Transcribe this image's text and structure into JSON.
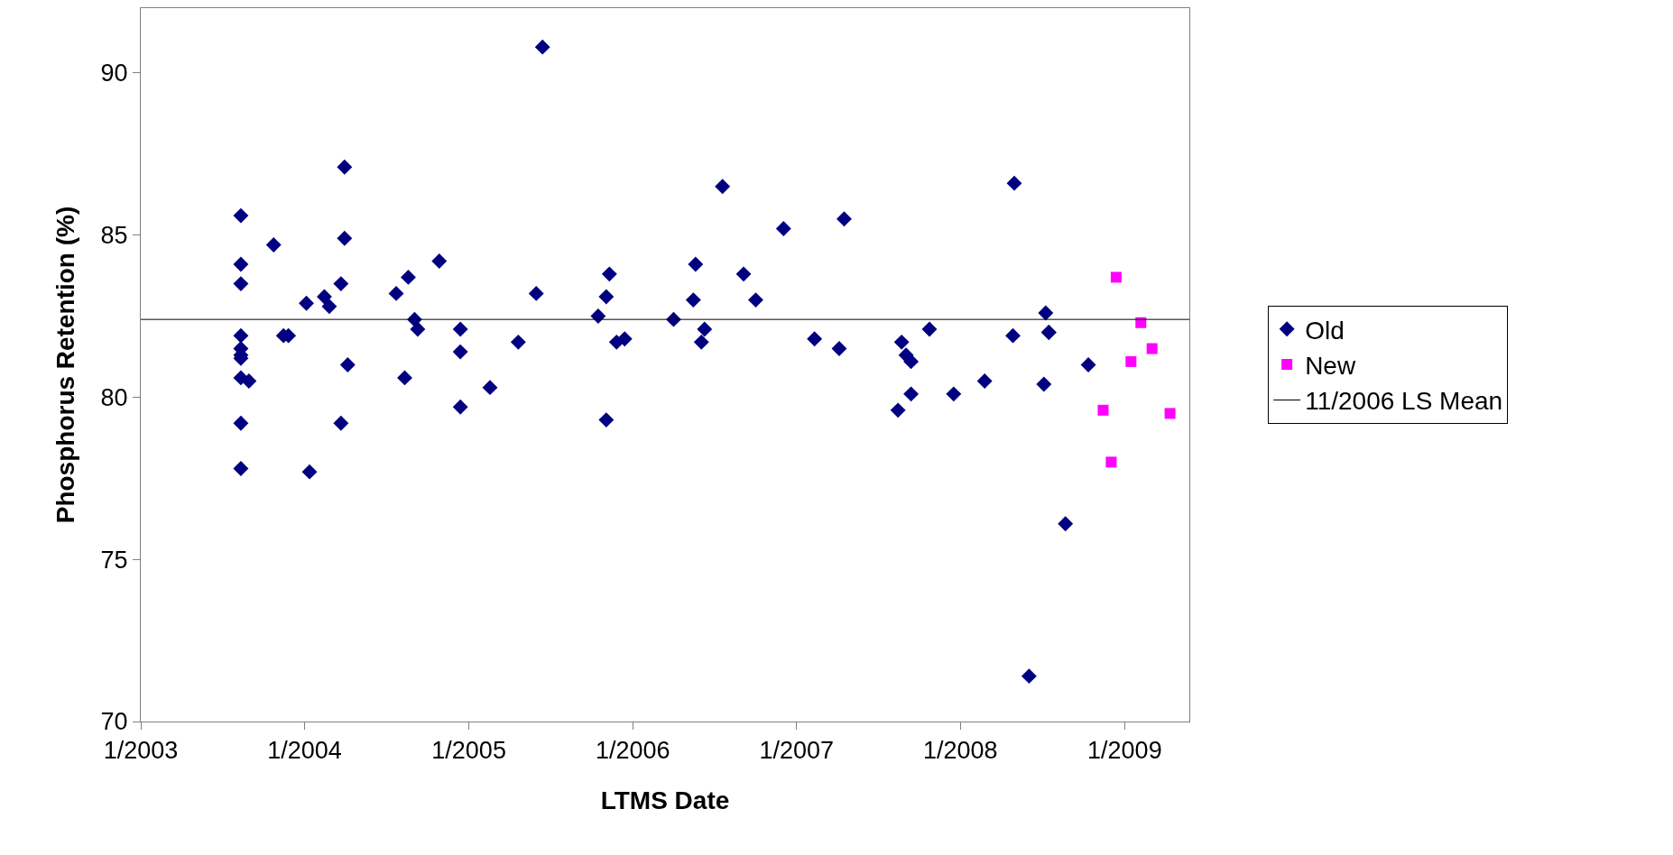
{
  "chart_data": {
    "type": "scatter",
    "xlabel": "LTMS Date",
    "ylabel": "Phosphorus Retention (%)",
    "xlim": [
      "2003-01-01",
      "2009-05-25"
    ],
    "xticks": [
      {
        "value": "2003-01-01",
        "label": "1/2003"
      },
      {
        "value": "2004-01-01",
        "label": "1/2004"
      },
      {
        "value": "2005-01-01",
        "label": "1/2005"
      },
      {
        "value": "2006-01-01",
        "label": "1/2006"
      },
      {
        "value": "2007-01-01",
        "label": "1/2007"
      },
      {
        "value": "2008-01-01",
        "label": "1/2008"
      },
      {
        "value": "2009-01-01",
        "label": "1/2009"
      }
    ],
    "ylim": [
      70,
      92
    ],
    "yticks": [
      70,
      75,
      80,
      85,
      90
    ],
    "legend": "right",
    "series": [
      {
        "name": "Old",
        "color": "#000080",
        "marker": "diamond",
        "x": [
          "2003-08-12",
          "2003-08-12",
          "2003-08-12",
          "2003-08-12",
          "2003-08-12",
          "2003-08-12",
          "2003-08-12",
          "2003-08-12",
          "2003-08-12",
          "2003-08-12",
          "2003-08-30",
          "2003-10-24",
          "2003-11-15",
          "2003-11-26",
          "2004-01-05",
          "2004-01-12",
          "2004-02-14",
          "2004-02-25",
          "2004-03-22",
          "2004-03-22",
          "2004-03-30",
          "2004-03-30",
          "2004-04-06",
          "2004-07-23",
          "2004-08-11",
          "2004-08-19",
          "2004-09-02",
          "2004-09-09",
          "2004-10-27",
          "2004-12-13",
          "2004-12-13",
          "2004-12-13",
          "2005-02-17",
          "2005-04-21",
          "2005-05-31",
          "2005-06-14",
          "2005-10-16",
          "2005-11-03",
          "2005-11-03",
          "2005-11-10",
          "2005-11-26",
          "2005-12-14",
          "2006-04-02",
          "2006-05-16",
          "2006-05-21",
          "2006-06-03",
          "2006-06-10",
          "2006-07-20",
          "2006-09-05",
          "2006-10-02",
          "2006-12-03",
          "2007-02-10",
          "2007-04-06",
          "2007-04-17",
          "2007-08-15",
          "2007-08-23",
          "2007-09-02",
          "2007-09-13",
          "2007-09-13",
          "2007-10-24",
          "2007-12-17",
          "2008-02-24",
          "2008-04-30",
          "2008-04-27",
          "2008-06-02",
          "2008-07-05",
          "2008-07-09",
          "2008-07-16",
          "2008-07-16",
          "2008-08-22",
          "2008-10-12"
        ],
        "values": [
          85.6,
          84.1,
          83.5,
          81.9,
          81.5,
          81.3,
          81.2,
          80.6,
          79.2,
          77.8,
          80.5,
          84.7,
          81.9,
          81.9,
          82.9,
          77.7,
          83.1,
          82.8,
          83.5,
          79.2,
          87.1,
          84.9,
          81.0,
          83.2,
          80.6,
          83.7,
          82.4,
          82.1,
          84.2,
          82.1,
          81.4,
          79.7,
          80.3,
          81.7,
          83.2,
          90.8,
          82.5,
          83.1,
          79.3,
          83.8,
          81.7,
          81.8,
          82.4,
          83.0,
          84.1,
          81.7,
          82.1,
          86.5,
          83.8,
          83.0,
          85.2,
          81.8,
          81.5,
          85.5,
          79.6,
          81.7,
          81.3,
          81.1,
          80.1,
          82.1,
          80.1,
          80.5,
          86.6,
          81.9,
          71.4,
          80.4,
          82.6,
          82.0,
          82.0,
          76.1,
          81.0
        ]
      },
      {
        "name": "New",
        "color": "#ff00ff",
        "marker": "square",
        "x": [
          "2008-11-14",
          "2008-12-02",
          "2008-12-13",
          "2009-01-15",
          "2009-02-06",
          "2009-03-03",
          "2009-04-12"
        ],
        "values": [
          79.6,
          78.0,
          83.7,
          81.1,
          82.3,
          81.5,
          79.5
        ]
      }
    ],
    "ref_lines": [
      {
        "axis": "y",
        "value": 82.4,
        "label": "11/2006 LS Mean",
        "color": "#000000",
        "line_style": "solid"
      }
    ]
  }
}
